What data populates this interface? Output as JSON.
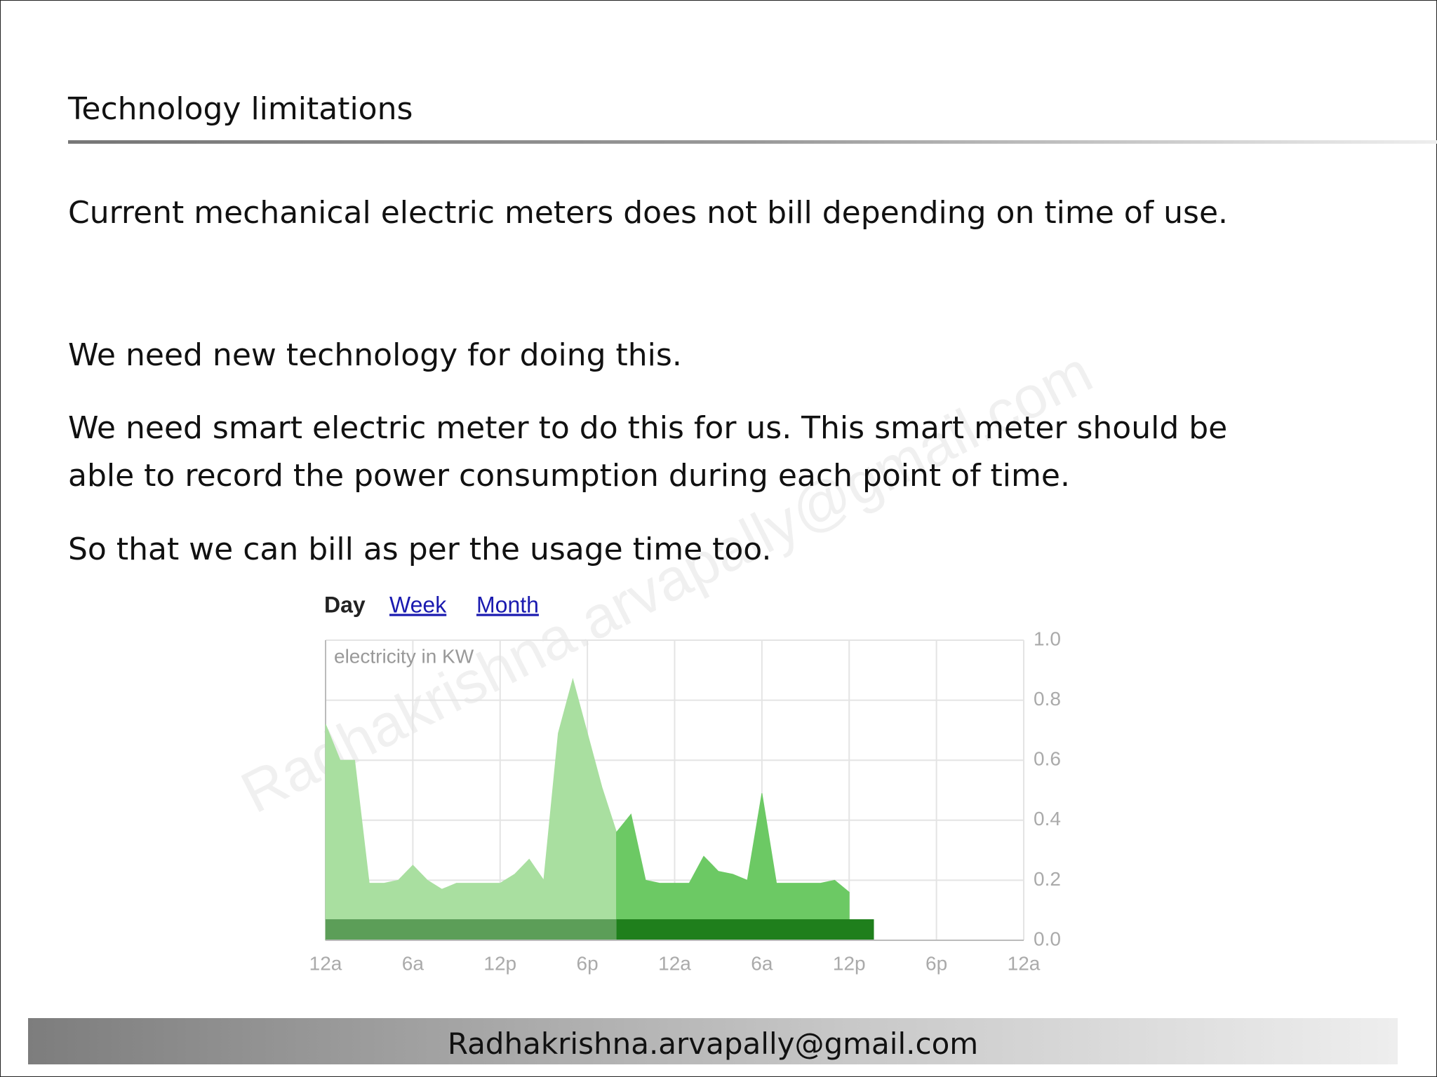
{
  "header": {
    "title": "Technology limitations"
  },
  "body": {
    "paragraphs": [
      "Current mechanical electric meters does not bill depending on time of use.",
      "We need new technology for doing this.",
      "We need smart electric meter to do this for us. This smart meter should be",
      "able to record the power consumption during each point of time.",
      "So that we can bill as per the usage time too."
    ]
  },
  "chart_data": {
    "type": "area",
    "tabs": [
      "Day",
      "Week",
      "Month"
    ],
    "ylabel": "electricity in KW",
    "xlim": [
      0,
      48
    ],
    "xticks": [
      {
        "value": 0,
        "label": "12a"
      },
      {
        "value": 6,
        "label": "6a"
      },
      {
        "value": 12,
        "label": "12p"
      },
      {
        "value": 18,
        "label": "6p"
      },
      {
        "value": 24,
        "label": "12a"
      },
      {
        "value": 30,
        "label": "6a"
      },
      {
        "value": 36,
        "label": "12p"
      },
      {
        "value": 42,
        "label": "6p"
      },
      {
        "value": 48,
        "label": "12a"
      }
    ],
    "ylim": [
      0,
      1
    ],
    "yticks": [
      {
        "value": 0,
        "label": "0.0"
      },
      0.2,
      0.4,
      0.6,
      0.8,
      {
        "value": 1,
        "label": "1.0"
      }
    ],
    "grid": true,
    "series": [
      {
        "color": "#a9dfa0",
        "x": [
          0,
          1,
          2,
          3,
          4,
          5,
          6,
          7,
          8,
          9,
          10,
          11,
          12,
          13,
          14,
          15,
          16,
          17,
          18,
          19,
          20
        ],
        "values": [
          0.72,
          0.6,
          0.6,
          0.19,
          0.19,
          0.2,
          0.25,
          0.2,
          0.17,
          0.19,
          0.19,
          0.19,
          0.19,
          0.22,
          0.27,
          0.2,
          0.69,
          0.87,
          0.69,
          0.51,
          0.36
        ]
      },
      {
        "color": "#6cc964",
        "x": [
          20,
          21,
          22,
          23,
          24,
          25,
          26,
          27,
          28,
          29,
          30,
          31,
          32,
          33,
          34,
          35,
          36
        ],
        "values": [
          0.36,
          0.42,
          0.2,
          0.19,
          0.19,
          0.19,
          0.28,
          0.23,
          0.22,
          0.2,
          0.49,
          0.19,
          0.19,
          0.19,
          0.19,
          0.2,
          0.16
        ]
      }
    ],
    "bars": [
      {
        "x": [
          0,
          20
        ],
        "value": 0.07,
        "color": "#5c9e58"
      },
      {
        "x": [
          20,
          37.7
        ],
        "value": 0.07,
        "color": "#1f7f1c"
      }
    ]
  },
  "watermark": "Radhakrishna.arvapally@gmail.com",
  "footer": {
    "text": "Radhakrishna.arvapally@gmail.com"
  }
}
